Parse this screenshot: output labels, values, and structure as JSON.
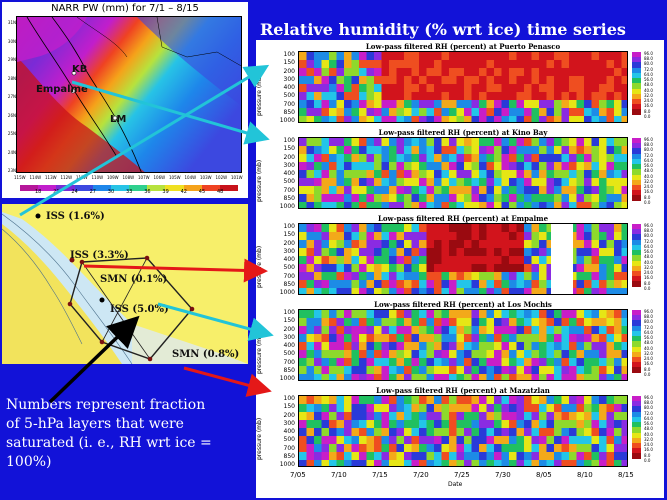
{
  "pw_map": {
    "title": "NARR PW (mm) for 7/1 – 8/15",
    "lat_labels": [
      "31N",
      "30N",
      "29N",
      "28N",
      "27N",
      "26N",
      "25N",
      "24N",
      "23N"
    ],
    "lon_labels": [
      "115W",
      "114W",
      "113W",
      "112W",
      "111W",
      "110W",
      "109W",
      "108W",
      "107W",
      "106W",
      "105W",
      "104W",
      "103W",
      "102W",
      "101W"
    ],
    "colorbar_labels": [
      "18",
      "21",
      "24",
      "27",
      "30",
      "33",
      "36",
      "39",
      "42",
      "45",
      "48"
    ],
    "colorbar_colors": [
      "#b5179a",
      "#c11ecc",
      "#7a2bd6",
      "#3c48e0",
      "#1e86ea",
      "#27c3e6",
      "#2fd08e",
      "#b7e23d",
      "#f0e020",
      "#f5a21a",
      "#ef4222",
      "#c8121a"
    ],
    "sites": [
      {
        "name": "KB"
      },
      {
        "name": "Empalme"
      },
      {
        "name": "LM"
      }
    ]
  },
  "station_map": {
    "labels": [
      {
        "text": "ISS (1.6%)"
      },
      {
        "text": "ISS (3.3%)"
      },
      {
        "text": "SMN (0.1%)"
      },
      {
        "text": "ISS (5.0%)"
      },
      {
        "text": "SMN (0.8%)"
      }
    ]
  },
  "caption": "Numbers represent fraction of 5-hPa layers that were saturated (i. e., RH wrt ice = 100%)",
  "title": "Relative humidity (% wrt ice) time series",
  "timeseries": {
    "pressure_axis_label": "pressure (mb)",
    "pressure_ticks": [
      "100",
      "150",
      "200",
      "300",
      "400",
      "500",
      "700",
      "850",
      "1000"
    ],
    "colorbar_ticks": [
      "96.0",
      "88.0",
      "80.0",
      "72.0",
      "64.0",
      "56.0",
      "48.0",
      "40.0",
      "32.0",
      "24.0",
      "16.0",
      "8.0",
      "0.0"
    ],
    "colorbar_colors": [
      "#c81ec8",
      "#8a2be2",
      "#2a3ad8",
      "#1d8be6",
      "#23c5e8",
      "#20c060",
      "#8ed92c",
      "#e6e615",
      "#f3a91a",
      "#ef4e20",
      "#d2141c",
      "#9a0a10",
      "#ffffff"
    ],
    "panels": [
      {
        "title": "Low-pass filtered RH (percent) at Puerto Penasco"
      },
      {
        "title": "Low-pass filtered RH (percent) at Kino Bay"
      },
      {
        "title": "Low-pass filtered RH (percent) at Empalme"
      },
      {
        "title": "Low-pass filtered RH (percent) at Los Mochis"
      },
      {
        "title": "Low-pass filtered RH (percent) at Mazatzlan"
      }
    ],
    "x_ticks": [
      "7/05",
      "7/10",
      "7/15",
      "7/20",
      "7/25",
      "7/30",
      "8/05",
      "8/10",
      "8/15"
    ],
    "x_label": "Date"
  },
  "arrow_colors": {
    "cyan": "#22c4d8",
    "red": "#e41818",
    "black": "#000000"
  }
}
